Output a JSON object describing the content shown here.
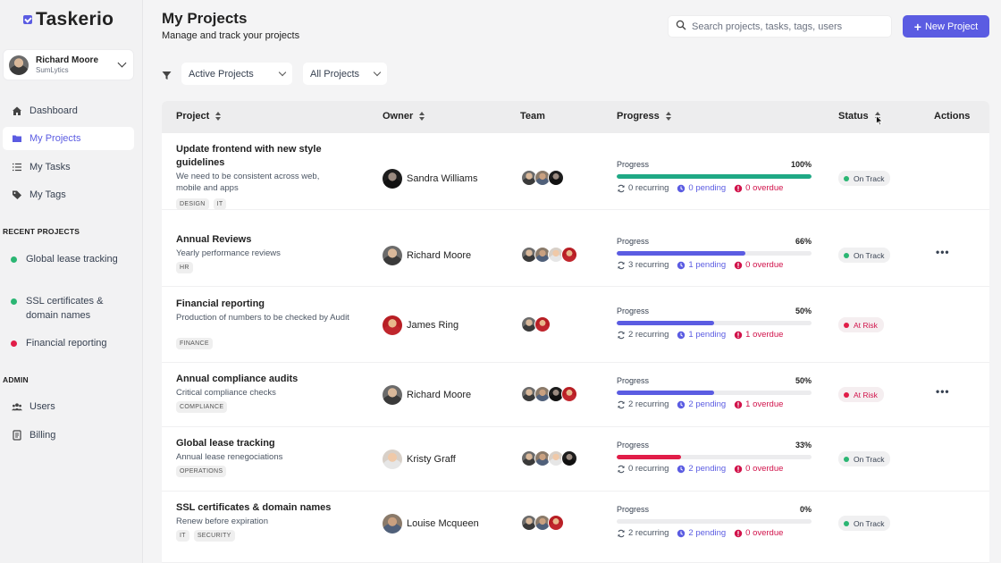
{
  "app": {
    "name": "Taskerio"
  },
  "user": {
    "name": "Richard Moore",
    "org": "SumLytics"
  },
  "nav": [
    {
      "label": "Dashboard",
      "icon": "home-icon"
    },
    {
      "label": "My Projects",
      "icon": "folder-icon",
      "active": true
    },
    {
      "label": "My Tasks",
      "icon": "list-icon"
    },
    {
      "label": "My Tags",
      "icon": "tag-icon"
    }
  ],
  "recent": {
    "title": "RECENT PROJECTS",
    "items": [
      {
        "label": "Global lease tracking",
        "color": "#2bb673"
      },
      {
        "label": "SSL certificates & domain names",
        "color": "#2bb673"
      },
      {
        "label": "Financial reporting",
        "color": "#e11d48"
      }
    ]
  },
  "admin": {
    "title": "ADMIN",
    "items": [
      {
        "label": "Users",
        "icon": "users-icon"
      },
      {
        "label": "Billing",
        "icon": "billing-icon"
      }
    ]
  },
  "header": {
    "title": "My Projects",
    "subtitle": "Manage and track your projects",
    "search_placeholder": "Search projects, tasks, tags, users",
    "new_button": "New Project"
  },
  "filters": {
    "status": "Active Projects",
    "scope": "All Projects"
  },
  "columns": {
    "project": "Project",
    "owner": "Owner",
    "team": "Team",
    "progress": "Progress",
    "status": "Status",
    "actions": "Actions"
  },
  "progress_label": "Progress",
  "rows": [
    {
      "title": "Update frontend with new style guidelines",
      "desc": "We need to be consistent across web, mobile and apps",
      "tags": [
        "DESIGN",
        "IT"
      ],
      "owner": "Sandra Williams",
      "percent": "100%",
      "progress": 1.0,
      "color": "#1fa985",
      "recurring": "0 recurring",
      "pending": "0 pending",
      "overdue": "0 overdue",
      "status": "On Track",
      "risk": false,
      "actions": false
    },
    {
      "title": "Annual Reviews",
      "desc": "Yearly performance reviews",
      "tags": [
        "HR"
      ],
      "owner": "Richard Moore",
      "percent": "66%",
      "progress": 0.66,
      "color": "#5b5ce2",
      "recurring": "3 recurring",
      "pending": "1 pending",
      "overdue": "0 overdue",
      "status": "On Track",
      "risk": false,
      "actions": true
    },
    {
      "title": "Financial reporting",
      "desc": "Production of numbers to be checked by Audit",
      "tags": [
        "FINANCE"
      ],
      "owner": "James Ring",
      "percent": "50%",
      "progress": 0.5,
      "color": "#5b5ce2",
      "recurring": "2 recurring",
      "pending": "1 pending",
      "overdue": "1 overdue",
      "status": "At Risk",
      "risk": true,
      "actions": false
    },
    {
      "title": "Annual compliance audits",
      "desc": "Critical compliance checks",
      "tags": [
        "COMPLIANCE"
      ],
      "owner": "Richard Moore",
      "percent": "50%",
      "progress": 0.5,
      "color": "#5b5ce2",
      "recurring": "2 recurring",
      "pending": "2 pending",
      "overdue": "1 overdue",
      "status": "At Risk",
      "risk": true,
      "actions": true
    },
    {
      "title": "Global lease tracking",
      "desc": "Annual lease renegociations",
      "tags": [
        "OPERATIONS"
      ],
      "owner": "Kristy Graff",
      "percent": "33%",
      "progress": 0.33,
      "color": "#e11d48",
      "recurring": "0 recurring",
      "pending": "2 pending",
      "overdue": "0 overdue",
      "status": "On Track",
      "risk": false,
      "actions": false
    },
    {
      "title": "SSL certificates & domain names",
      "desc": "Renew before expiration",
      "tags": [
        "IT",
        "SECURITY"
      ],
      "owner": "Louise Mcqueen",
      "percent": "0%",
      "progress": 0,
      "color": "#e11d48",
      "recurring": "2 recurring",
      "pending": "2 pending",
      "overdue": "0 overdue",
      "status": "On Track",
      "risk": false,
      "actions": false
    }
  ],
  "colors": {
    "accent": "#5b5ce2",
    "on_track": "#2bb673",
    "at_risk": "#e11d48"
  }
}
